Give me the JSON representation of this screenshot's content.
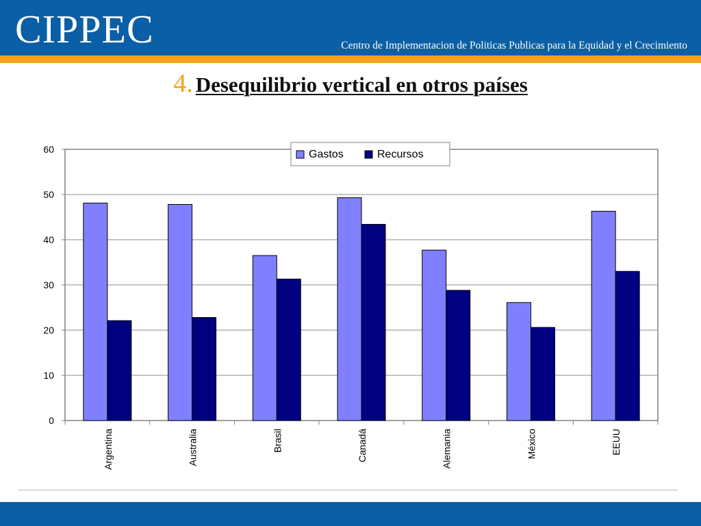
{
  "header": {
    "logo_text": "CIPPEC",
    "tagline": "Centro de Implementacion de Politicas Publicas para la Equidad y el Crecimiento"
  },
  "slide": {
    "title_number": "4.",
    "title_text": "Desequilibrio vertical en otros países"
  },
  "colors": {
    "header_blue": "#0a5fa6",
    "stripe_orange": "#f7a21b",
    "gastos": "#8080ff",
    "recursos": "#000080"
  },
  "chart_data": {
    "type": "bar",
    "title": "",
    "xlabel": "",
    "ylabel": "",
    "categories": [
      "Argentina",
      "Australia",
      "Brasil",
      "Canadá",
      "Alemania",
      "México",
      "EEUU"
    ],
    "series": [
      {
        "name": "Gastos",
        "values": [
          48.1,
          47.8,
          36.5,
          49.3,
          37.7,
          26.1,
          46.3
        ]
      },
      {
        "name": "Recursos",
        "values": [
          22.1,
          22.8,
          31.3,
          43.4,
          28.8,
          20.6,
          33.0
        ]
      }
    ],
    "ylim": [
      0,
      60
    ],
    "yticks": [
      "0",
      "10",
      "20",
      "30",
      "40",
      "50",
      "60"
    ],
    "grid": true,
    "legend_position": "top-right"
  }
}
